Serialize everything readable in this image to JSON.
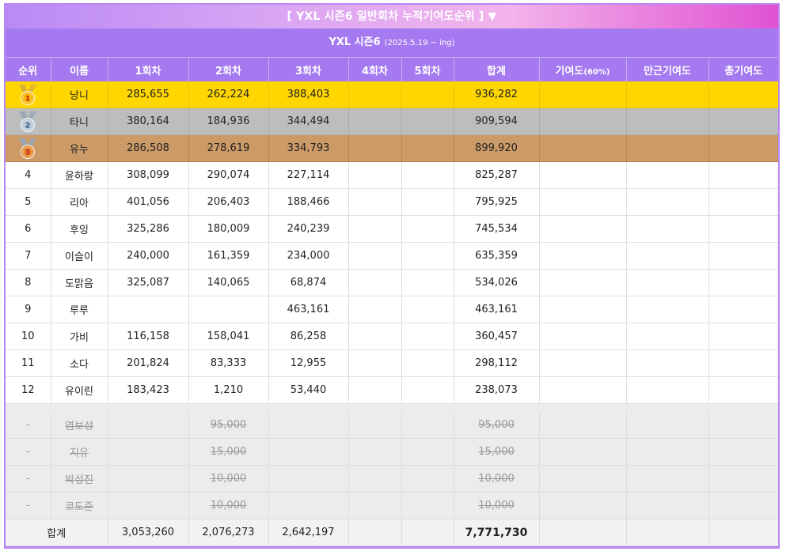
{
  "banner": "[ YXL 시즌6 일반회차 누적기여도순위 ] ▼",
  "subheader": {
    "title": "YXL 시즌6",
    "period": "(2025.5.19 ~ ing)"
  },
  "columns": [
    "순위",
    "이름",
    "1회차",
    "2회차",
    "3회차",
    "4회차",
    "5회차",
    "합계",
    "기여도",
    "(60%)",
    "만근기여도",
    "총기여도"
  ],
  "medals": [
    {
      "num": "1",
      "ribbon": "#d9b23a",
      "disc": "#f6b400",
      "numColor": "#c8151b"
    },
    {
      "num": "2",
      "ribbon": "#9aa7b8",
      "disc": "#b8c6d6",
      "numColor": "#2f4c7c"
    },
    {
      "num": "3",
      "ribbon": "#9aa7b8",
      "disc": "#e3892b",
      "numColor": "#c8151b"
    }
  ],
  "rows": [
    {
      "rank": "1",
      "name": "낭니",
      "r1": "285,655",
      "r2": "262,224",
      "r3": "388,403",
      "r4": "",
      "r5": "",
      "total": "936,282"
    },
    {
      "rank": "2",
      "name": "타니",
      "r1": "380,164",
      "r2": "184,936",
      "r3": "344,494",
      "r4": "",
      "r5": "",
      "total": "909,594"
    },
    {
      "rank": "3",
      "name": "유누",
      "r1": "286,508",
      "r2": "278,619",
      "r3": "334,793",
      "r4": "",
      "r5": "",
      "total": "899,920"
    },
    {
      "rank": "4",
      "name": "윤하랑",
      "r1": "308,099",
      "r2": "290,074",
      "r3": "227,114",
      "r4": "",
      "r5": "",
      "total": "825,287"
    },
    {
      "rank": "5",
      "name": "리아",
      "r1": "401,056",
      "r2": "206,403",
      "r3": "188,466",
      "r4": "",
      "r5": "",
      "total": "795,925"
    },
    {
      "rank": "6",
      "name": "후잉",
      "r1": "325,286",
      "r2": "180,009",
      "r3": "240,239",
      "r4": "",
      "r5": "",
      "total": "745,534"
    },
    {
      "rank": "7",
      "name": "이슬이",
      "r1": "240,000",
      "r2": "161,359",
      "r3": "234,000",
      "r4": "",
      "r5": "",
      "total": "635,359"
    },
    {
      "rank": "8",
      "name": "도맑음",
      "r1": "325,087",
      "r2": "140,065",
      "r3": "68,874",
      "r4": "",
      "r5": "",
      "total": "534,026"
    },
    {
      "rank": "9",
      "name": "루루",
      "r1": "",
      "r2": "",
      "r3": "463,161",
      "r4": "",
      "r5": "",
      "total": "463,161"
    },
    {
      "rank": "10",
      "name": "가비",
      "r1": "116,158",
      "r2": "158,041",
      "r3": "86,258",
      "r4": "",
      "r5": "",
      "total": "360,457"
    },
    {
      "rank": "11",
      "name": "소다",
      "r1": "201,824",
      "r2": "83,333",
      "r3": "12,955",
      "r4": "",
      "r5": "",
      "total": "298,112"
    },
    {
      "rank": "12",
      "name": "유이린",
      "r1": "183,423",
      "r2": "1,210",
      "r3": "53,440",
      "r4": "",
      "r5": "",
      "total": "238,073"
    }
  ],
  "excluded": [
    {
      "rank": "-",
      "name": "염보성",
      "r2": "95,000",
      "total": "95,000"
    },
    {
      "rank": "-",
      "name": "지유",
      "r2": "15,000",
      "total": "15,000"
    },
    {
      "rank": "-",
      "name": "박성진",
      "r2": "10,000",
      "total": "10,000"
    },
    {
      "rank": "-",
      "name": "코도준",
      "r2": "10,000",
      "total": "10,000"
    }
  ],
  "totals": {
    "label": "합계",
    "r1": "3,053,260",
    "r2": "2,076,273",
    "r3": "2,642,197",
    "total": "7,771,730"
  },
  "colors": {
    "header": "#a57af0",
    "gold": "#ffd600",
    "silver": "#bdbdbd",
    "bronze": "#cb9a67"
  }
}
